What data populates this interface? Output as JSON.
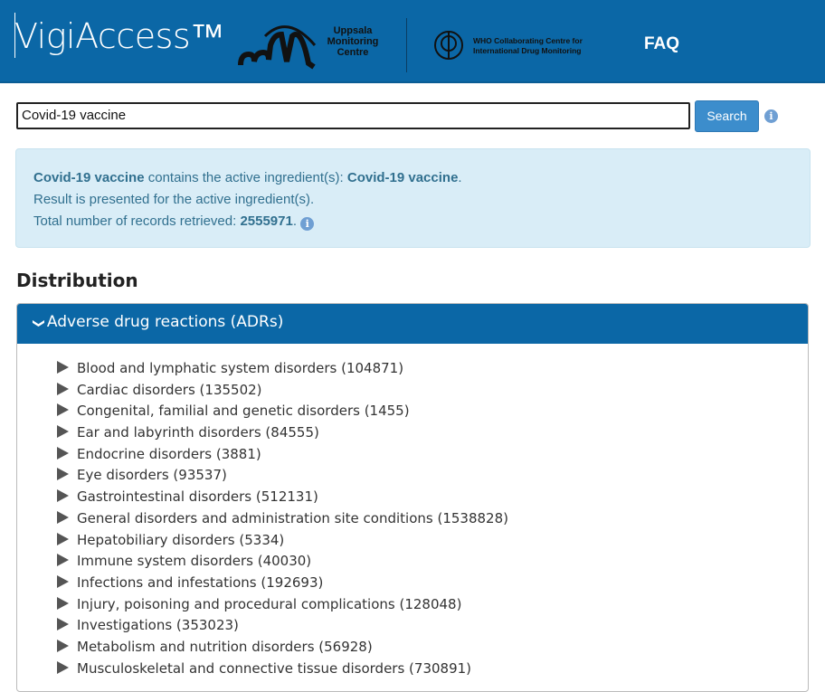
{
  "header": {
    "brand": "VigiAccess™",
    "umc_logo": "Uppsala Monitoring Centre",
    "who_logo": "WHO Collaborating Centre for International Drug Monitoring",
    "faq": "FAQ"
  },
  "search": {
    "value": "Covid-19 vaccine",
    "button": "Search"
  },
  "result": {
    "drug": "Covid-19 vaccine",
    "contains": " contains the active ingredient(s): ",
    "ingredient": "Covid-19 vaccine",
    "line2": "Result is presented for the active ingredient(s).",
    "line3_prefix": "Total number of records retrieved: ",
    "total": "2555971"
  },
  "distribution": {
    "title": "Distribution",
    "panel_title": "Adverse drug reactions (ADRs)",
    "items": [
      {
        "label": "Blood and lymphatic system disorders (104871)"
      },
      {
        "label": "Cardiac disorders (135502)"
      },
      {
        "label": "Congenital, familial and genetic disorders (1455)"
      },
      {
        "label": "Ear and labyrinth disorders (84555)"
      },
      {
        "label": "Endocrine disorders (3881)"
      },
      {
        "label": "Eye disorders (93537)"
      },
      {
        "label": "Gastrointestinal disorders (512131)"
      },
      {
        "label": "General disorders and administration site conditions (1538828)"
      },
      {
        "label": "Hepatobiliary disorders (5334)"
      },
      {
        "label": "Immune system disorders (40030)"
      },
      {
        "label": "Infections and infestations (192693)"
      },
      {
        "label": "Injury, poisoning and procedural complications (128048)"
      },
      {
        "label": "Investigations (353023)"
      },
      {
        "label": "Metabolism and nutrition disorders (56928)"
      },
      {
        "label": "Musculoskeletal and connective tissue disorders (730891)"
      }
    ]
  },
  "colors": {
    "brand_blue": "#0b67a6",
    "info_bg": "#d9edf7",
    "info_text": "#31708f",
    "button": "#3c8dcc"
  }
}
